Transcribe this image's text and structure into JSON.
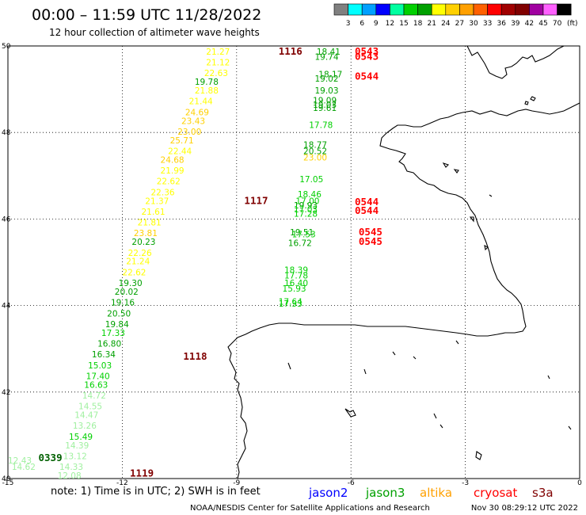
{
  "title": "00:00 – 11:59 UTC 11/28/2022",
  "subtitle": "12 hour collection of altimeter wave heights",
  "legend": {
    "unit": "(ft)",
    "ticks": [
      "3",
      "6",
      "9",
      "12",
      "15",
      "18",
      "21",
      "24",
      "27",
      "30",
      "33",
      "36",
      "39",
      "42",
      "45",
      "70"
    ],
    "colors": [
      "#808080",
      "#00ffff",
      "#00a0ff",
      "#0000ff",
      "#00ffa0",
      "#00d000",
      "#00a000",
      "#ffff00",
      "#ffd000",
      "#ffa000",
      "#ff6000",
      "#ff0000",
      "#a00000",
      "#800000",
      "#a000a0",
      "#ff60ff",
      "#000000"
    ]
  },
  "axes": {
    "lat_labels": [
      "50",
      "48",
      "46",
      "44",
      "42",
      "40"
    ],
    "lon_labels": [
      "-15",
      "-12",
      "-9",
      "-6",
      "-3",
      "0"
    ]
  },
  "times": [
    {
      "text": "1116",
      "lon": -7.9,
      "lat": 49.8,
      "color": "#800000"
    },
    {
      "text": "1117",
      "lon": -8.8,
      "lat": 46.35,
      "color": "#800000"
    },
    {
      "text": "1118",
      "lon": -10.4,
      "lat": 42.75,
      "color": "#800000"
    },
    {
      "text": "1119",
      "lon": -11.8,
      "lat": 40.05,
      "color": "#800000"
    },
    {
      "text": "0339",
      "lon": -14.2,
      "lat": 40.4,
      "color": "#006000"
    },
    {
      "text": "0543",
      "lon": -5.9,
      "lat": 49.8,
      "color": "#ff0000"
    },
    {
      "text": "0543",
      "lon": -5.9,
      "lat": 49.68,
      "color": "#ff0000"
    },
    {
      "text": "0544",
      "lon": -5.9,
      "lat": 49.22,
      "color": "#ff0000"
    },
    {
      "text": "0544",
      "lon": -5.9,
      "lat": 46.32,
      "color": "#ff0000"
    },
    {
      "text": "0544",
      "lon": -5.9,
      "lat": 46.12,
      "color": "#ff0000"
    },
    {
      "text": "0545",
      "lon": -5.8,
      "lat": 45.62,
      "color": "#ff0000"
    },
    {
      "text": "0545",
      "lon": -5.8,
      "lat": 45.4,
      "color": "#ff0000"
    }
  ],
  "observations": [
    {
      "v": "21.27",
      "lon": -9.8,
      "lat": 49.8,
      "color": "#ffff00"
    },
    {
      "v": "21.12",
      "lon": -9.8,
      "lat": 49.55,
      "color": "#ffff00"
    },
    {
      "v": "22.63",
      "lon": -9.85,
      "lat": 49.3,
      "color": "#ffff00"
    },
    {
      "v": "19.78",
      "lon": -10.1,
      "lat": 49.1,
      "color": "#00a000"
    },
    {
      "v": "21.88",
      "lon": -10.1,
      "lat": 48.9,
      "color": "#ffff00"
    },
    {
      "v": "21.44",
      "lon": -10.25,
      "lat": 48.65,
      "color": "#ffff00"
    },
    {
      "v": "24.69",
      "lon": -10.35,
      "lat": 48.4,
      "color": "#ffd000"
    },
    {
      "v": "23.43",
      "lon": -10.45,
      "lat": 48.2,
      "color": "#ffd000"
    },
    {
      "v": "23.00",
      "lon": -10.55,
      "lat": 47.95,
      "color": "#ffd000"
    },
    {
      "v": "25.71",
      "lon": -10.75,
      "lat": 47.75,
      "color": "#ffd000"
    },
    {
      "v": "22.44",
      "lon": -10.8,
      "lat": 47.5,
      "color": "#ffff00"
    },
    {
      "v": "24.68",
      "lon": -11.0,
      "lat": 47.3,
      "color": "#ffd000"
    },
    {
      "v": "21.99",
      "lon": -11.0,
      "lat": 47.05,
      "color": "#ffff00"
    },
    {
      "v": "22.62",
      "lon": -11.1,
      "lat": 46.8,
      "color": "#ffff00"
    },
    {
      "v": "22.36",
      "lon": -11.25,
      "lat": 46.55,
      "color": "#ffff00"
    },
    {
      "v": "21.37",
      "lon": -11.4,
      "lat": 46.35,
      "color": "#ffff00"
    },
    {
      "v": "21.61",
      "lon": -11.5,
      "lat": 46.1,
      "color": "#ffff00"
    },
    {
      "v": "21.81",
      "lon": -11.6,
      "lat": 45.85,
      "color": "#ffff00"
    },
    {
      "v": "23.81",
      "lon": -11.7,
      "lat": 45.6,
      "color": "#ffd000"
    },
    {
      "v": "20.23",
      "lon": -11.75,
      "lat": 45.4,
      "color": "#00a000"
    },
    {
      "v": "22.26",
      "lon": -11.85,
      "lat": 45.15,
      "color": "#ffff00"
    },
    {
      "v": "21.24",
      "lon": -11.9,
      "lat": 44.95,
      "color": "#ffff00"
    },
    {
      "v": "22.62",
      "lon": -12.0,
      "lat": 44.7,
      "color": "#ffff00"
    },
    {
      "v": "19.30",
      "lon": -12.1,
      "lat": 44.45,
      "color": "#00a000"
    },
    {
      "v": "20.02",
      "lon": -12.2,
      "lat": 44.25,
      "color": "#00a000"
    },
    {
      "v": "19.16",
      "lon": -12.3,
      "lat": 44.0,
      "color": "#00a000"
    },
    {
      "v": "20.50",
      "lon": -12.4,
      "lat": 43.75,
      "color": "#00a000"
    },
    {
      "v": "19.84",
      "lon": -12.45,
      "lat": 43.5,
      "color": "#00a000"
    },
    {
      "v": "17.33",
      "lon": -12.55,
      "lat": 43.3,
      "color": "#00d000"
    },
    {
      "v": "16.80",
      "lon": -12.65,
      "lat": 43.05,
      "color": "#00a000"
    },
    {
      "v": "16.34",
      "lon": -12.8,
      "lat": 42.8,
      "color": "#00a000"
    },
    {
      "v": "15.03",
      "lon": -12.9,
      "lat": 42.55,
      "color": "#00d000"
    },
    {
      "v": "17.40",
      "lon": -12.95,
      "lat": 42.3,
      "color": "#00d000"
    },
    {
      "v": "16.63",
      "lon": -13.0,
      "lat": 42.1,
      "color": "#00d000"
    },
    {
      "v": "14.72",
      "lon": -13.05,
      "lat": 41.85,
      "color": "#a0f0a0"
    },
    {
      "v": "14.55",
      "lon": -13.15,
      "lat": 41.6,
      "color": "#a0f0a0"
    },
    {
      "v": "14.47",
      "lon": -13.25,
      "lat": 41.4,
      "color": "#a0f0a0"
    },
    {
      "v": "13.26",
      "lon": -13.3,
      "lat": 41.15,
      "color": "#a0f0a0"
    },
    {
      "v": "15.49",
      "lon": -13.4,
      "lat": 40.9,
      "color": "#00d000"
    },
    {
      "v": "14.39",
      "lon": -13.5,
      "lat": 40.7,
      "color": "#a0f0a0"
    },
    {
      "v": "13.12",
      "lon": -13.55,
      "lat": 40.45,
      "color": "#a0f0a0"
    },
    {
      "v": "14.33",
      "lon": -13.65,
      "lat": 40.2,
      "color": "#a0f0a0"
    },
    {
      "v": "12.08",
      "lon": -13.7,
      "lat": 40.0,
      "color": "#a0f0a0"
    },
    {
      "v": "12.43",
      "lon": -15.0,
      "lat": 40.35,
      "color": "#a0f0a0"
    },
    {
      "v": "14.62",
      "lon": -14.9,
      "lat": 40.2,
      "color": "#a0f0a0"
    },
    {
      "v": "18.41",
      "lon": -6.9,
      "lat": 49.8,
      "color": "#00a000"
    },
    {
      "v": "19.74",
      "lon": -6.95,
      "lat": 49.68,
      "color": "#00a000"
    },
    {
      "v": "18.17",
      "lon": -6.85,
      "lat": 49.28,
      "color": "#00a000"
    },
    {
      "v": "19.02",
      "lon": -6.95,
      "lat": 49.18,
      "color": "#00a000"
    },
    {
      "v": "19.03",
      "lon": -6.95,
      "lat": 48.9,
      "color": "#00a000"
    },
    {
      "v": "19.09",
      "lon": -7.0,
      "lat": 48.67,
      "color": "#00a000"
    },
    {
      "v": "19.03",
      "lon": -7.0,
      "lat": 48.57,
      "color": "#00a000"
    },
    {
      "v": "19.61",
      "lon": -7.0,
      "lat": 48.5,
      "color": "#00a000"
    },
    {
      "v": "17.78",
      "lon": -7.1,
      "lat": 48.1,
      "color": "#00d000"
    },
    {
      "v": "18.77",
      "lon": -7.25,
      "lat": 47.65,
      "color": "#00a000"
    },
    {
      "v": "20.52",
      "lon": -7.25,
      "lat": 47.5,
      "color": "#00a000"
    },
    {
      "v": "23.00",
      "lon": -7.25,
      "lat": 47.35,
      "color": "#ffd000"
    },
    {
      "v": "17.05",
      "lon": -7.35,
      "lat": 46.85,
      "color": "#00d000"
    },
    {
      "v": "18.46",
      "lon": -7.4,
      "lat": 46.5,
      "color": "#00d000"
    },
    {
      "v": "17.00",
      "lon": -7.45,
      "lat": 46.35,
      "color": "#00d000"
    },
    {
      "v": "19.93",
      "lon": -7.5,
      "lat": 46.25,
      "color": "#00a000"
    },
    {
      "v": "17.03",
      "lon": -7.5,
      "lat": 46.15,
      "color": "#00d000"
    },
    {
      "v": "17.28",
      "lon": -7.5,
      "lat": 46.05,
      "color": "#00d000"
    },
    {
      "v": "19.51",
      "lon": -7.6,
      "lat": 45.62,
      "color": "#00a000"
    },
    {
      "v": "17.53",
      "lon": -7.55,
      "lat": 45.58,
      "color": "#00d000"
    },
    {
      "v": "16.72",
      "lon": -7.65,
      "lat": 45.38,
      "color": "#00a000"
    },
    {
      "v": "18.39",
      "lon": -7.75,
      "lat": 44.75,
      "color": "#00d000"
    },
    {
      "v": "17.78",
      "lon": -7.75,
      "lat": 44.62,
      "color": "#00d000"
    },
    {
      "v": "16.40",
      "lon": -7.75,
      "lat": 44.45,
      "color": "#00d000"
    },
    {
      "v": "15.93",
      "lon": -7.8,
      "lat": 44.32,
      "color": "#00d000"
    },
    {
      "v": "17.64",
      "lon": -7.9,
      "lat": 44.02,
      "color": "#00d000"
    },
    {
      "v": "17.33",
      "lon": -7.9,
      "lat": 43.97,
      "color": "#00d000"
    }
  ],
  "satellites": [
    {
      "name": "jason2",
      "color": "#0000ff"
    },
    {
      "name": "jason3",
      "color": "#00a000"
    },
    {
      "name": "altika",
      "color": "#ffa000"
    },
    {
      "name": "cryosat",
      "color": "#ff0000"
    },
    {
      "name": "s3a",
      "color": "#800000"
    }
  ],
  "note": "note: 1) Time is in UTC; 2) SWH is in feet",
  "footer_left": "NOAA/NESDIS Center for Satellite Applications and Research",
  "footer_right": "Nov 30 08:29:12 UTC 2022"
}
